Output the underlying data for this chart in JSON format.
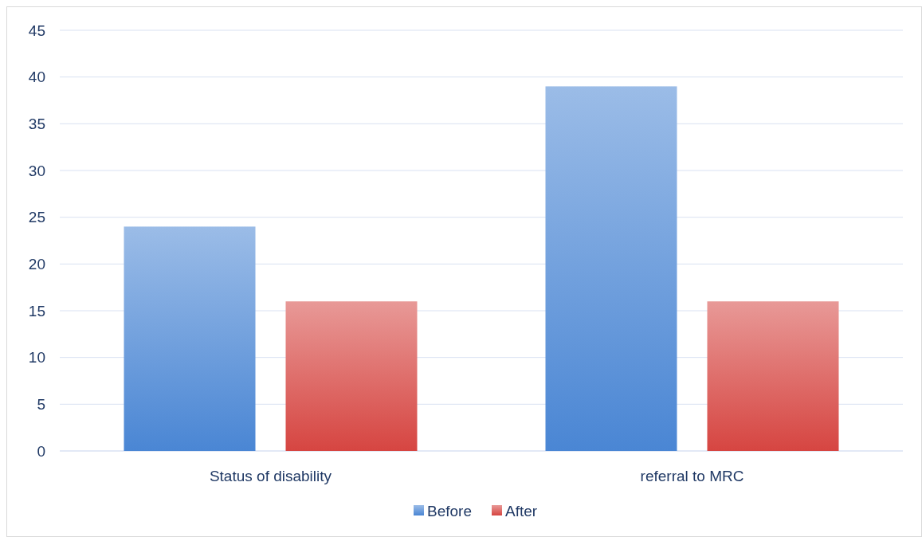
{
  "chart_data": {
    "type": "bar",
    "categories": [
      "Status of disability",
      "referral to MRC"
    ],
    "series": [
      {
        "name": "Before",
        "color": "#4a86d4",
        "values": [
          24,
          39
        ]
      },
      {
        "name": "After",
        "color": "#d64541",
        "values": [
          16,
          16
        ]
      }
    ],
    "ylim": [
      0,
      45
    ],
    "yticks": [
      0,
      5,
      10,
      15,
      20,
      25,
      30,
      35,
      40,
      45
    ],
    "grid": "y",
    "legend": "bottom"
  }
}
